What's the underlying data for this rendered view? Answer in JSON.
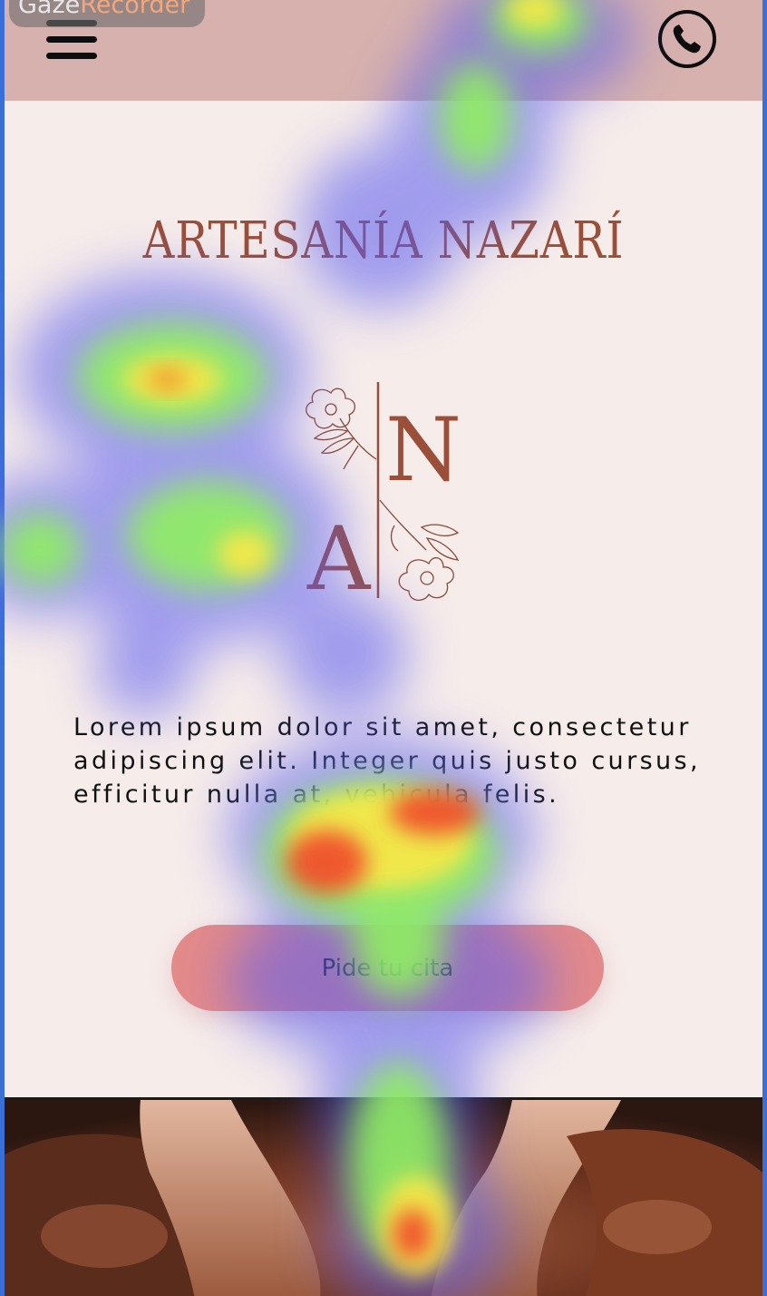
{
  "app": {
    "watermark_part1": "Gaze",
    "watermark_part2": "Recorder"
  },
  "header": {
    "menu_icon": "hamburger-menu-icon",
    "phone_icon": "phone-icon",
    "background": "#d7b1ad"
  },
  "hero": {
    "title": "ARTESANÍA NAZARÍ",
    "logo_letter_top": "N",
    "logo_letter_bottom": "A",
    "body": "Lorem ipsum dolor sit amet, consectetur adipiscing elit. Integer quis justo cursus, efficitur nulla at, vehicula felis.",
    "cta_label": "Pide tu cita"
  },
  "colors": {
    "page_background": "#f6ecea",
    "brand": "#9b4e38",
    "cta": "#e38a8a",
    "text": "#111111"
  }
}
